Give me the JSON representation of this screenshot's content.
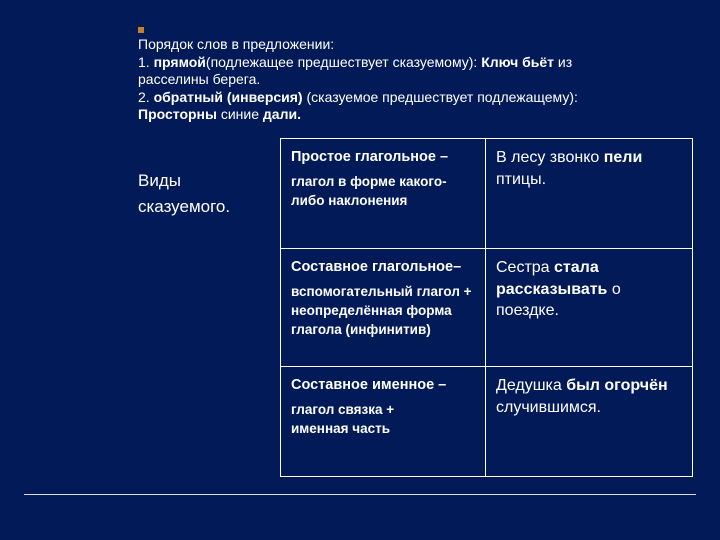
{
  "colors": {
    "background": "#021a57",
    "text": "#ffffff",
    "accent": "#c77f2c",
    "border": "#ffffff"
  },
  "intro": {
    "line1_a": "Порядок слов в предложении",
    "line1_b": ":",
    "line2_a": "1. ",
    "line2_b": "прямой",
    "line2_c": "(подлежащее предшествует сказуемому): ",
    "line2_d": "Ключ бьёт",
    "line2_e": " из",
    "line3": "расселины берега.",
    "line4_a": "2. ",
    "line4_b": "обратный (инверсия)",
    "line4_c": " (сказуемое предшествует подлежащему):",
    "line5_a": "Просторны",
    "line5_b": " синие ",
    "line5_c": "дали."
  },
  "sideLabel": {
    "line1": "Виды",
    "line2": "сказуемого."
  },
  "rows": [
    {
      "def_title": "Простое глагольное –",
      "def_sub": "глагол в форме какого-либо наклонения",
      "ex_pre": "В лесу звонко ",
      "ex_bold": "пели",
      "ex_post": " птицы."
    },
    {
      "def_title": "Составное глагольное–",
      "def_sub": "вспомогательный глагол + неопределённая форма глагола (инфинитив)",
      "ex_pre": "Сестра ",
      "ex_bold": "стала рассказывать",
      "ex_post": " о поездке."
    },
    {
      "def_title": "Составное именное –",
      "def_sub": "глагол связка +\nименная  часть",
      "ex_pre": "Дедушка ",
      "ex_bold": "был огорчён",
      "ex_post": " случившимся."
    }
  ]
}
